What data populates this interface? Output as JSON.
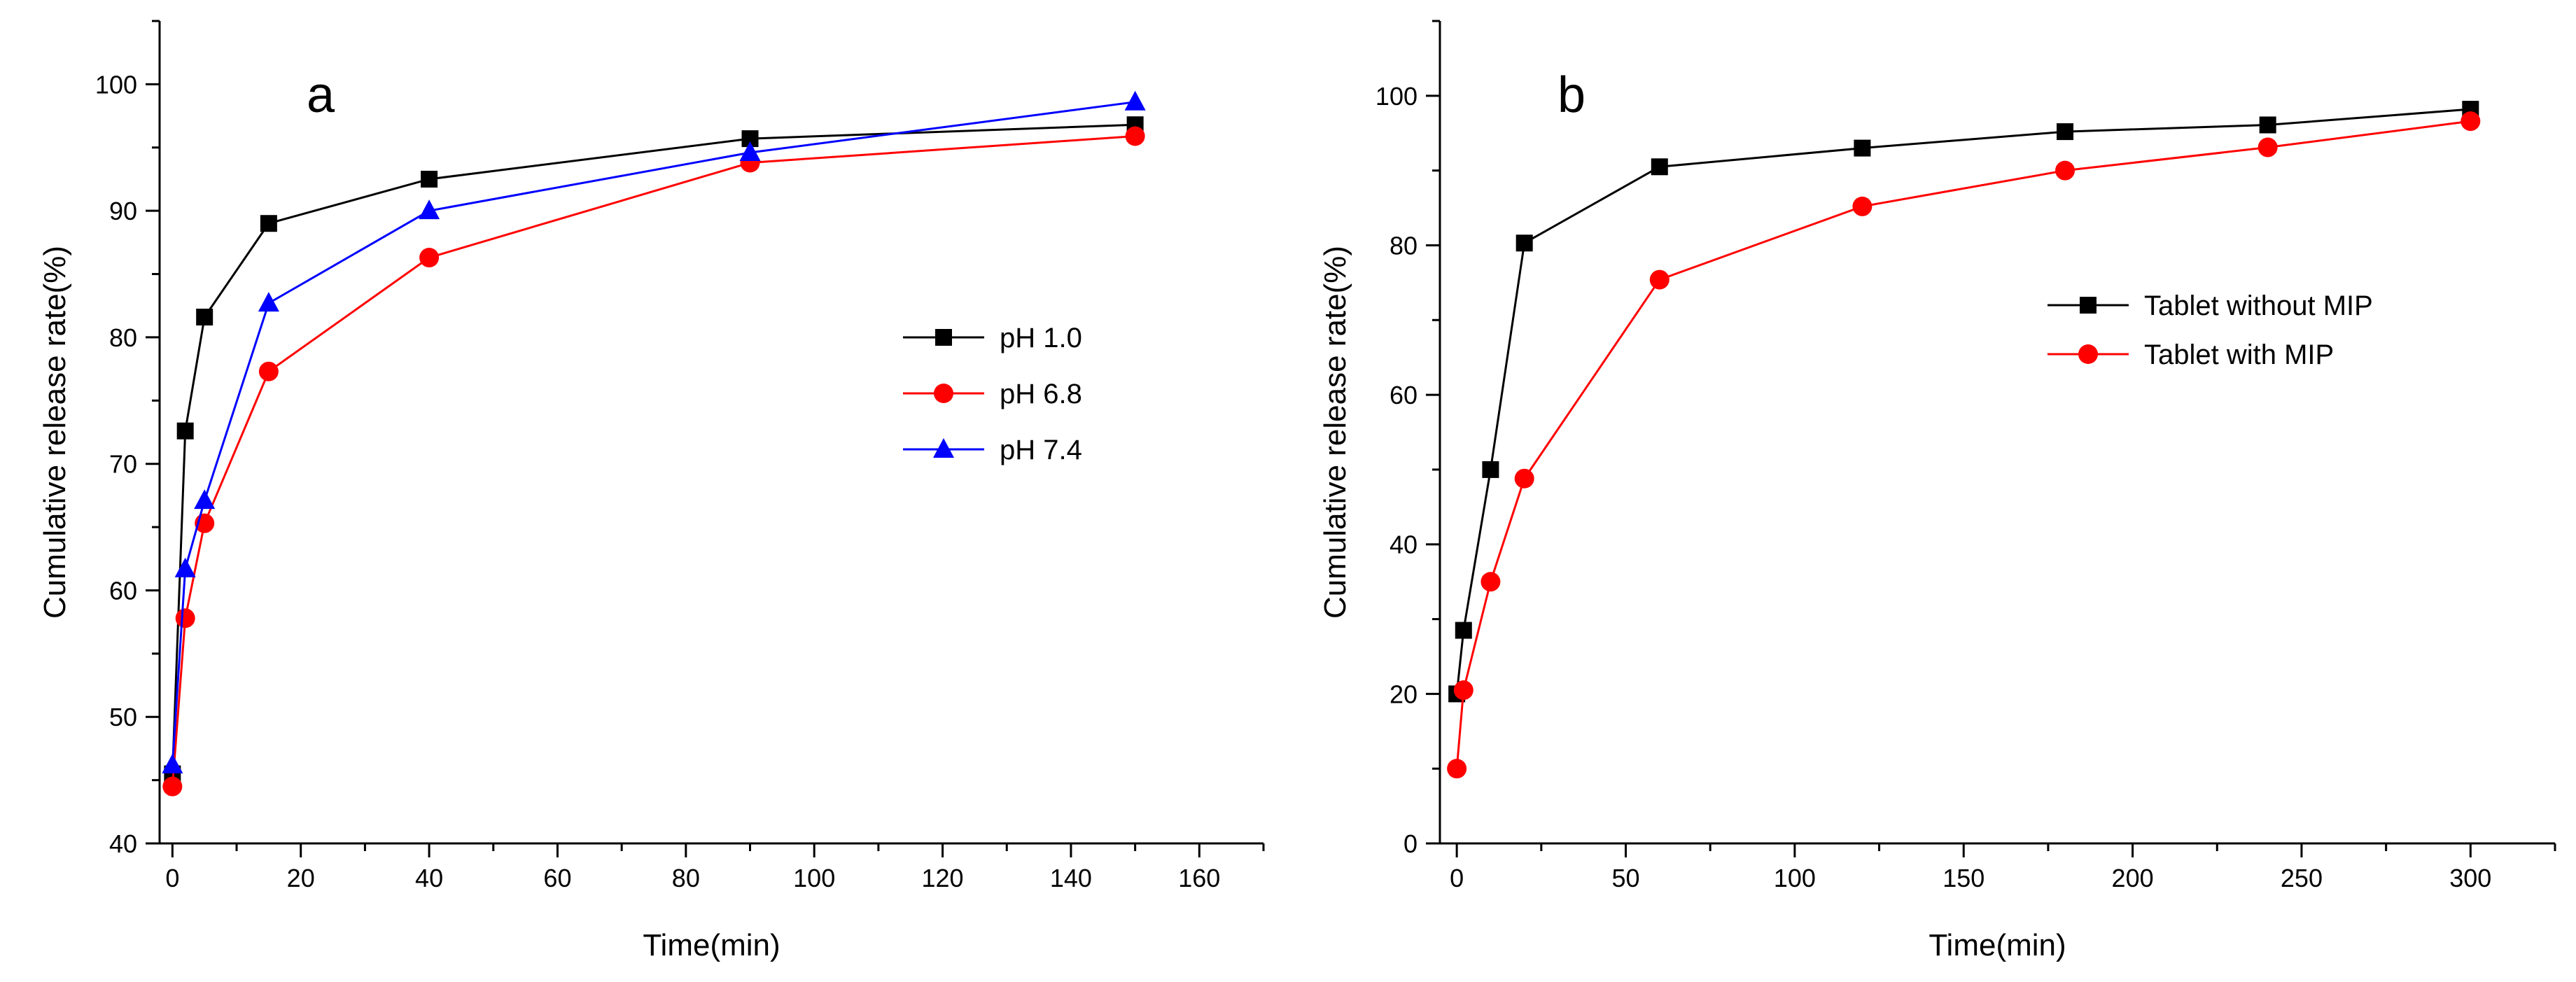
{
  "chart_data": [
    {
      "type": "line",
      "panel_label": "a",
      "xlabel": "Time(min)",
      "ylabel": "Cumulative release rate(%)",
      "xlim": [
        -2,
        170
      ],
      "ylim": [
        40,
        105
      ],
      "xticks": [
        0,
        20,
        40,
        60,
        80,
        100,
        120,
        140,
        160
      ],
      "yticks": [
        40,
        50,
        60,
        70,
        80,
        90,
        100
      ],
      "grid": false,
      "legend_position": "center-right",
      "series": [
        {
          "name": "pH 1.0",
          "color": "#000000",
          "marker": "square",
          "x": [
            0,
            2,
            5,
            15,
            40,
            90,
            150
          ],
          "y": [
            45.5,
            72.6,
            81.6,
            89.0,
            92.5,
            95.7,
            96.8
          ]
        },
        {
          "name": "pH 6.8",
          "color": "#ff0000",
          "marker": "circle",
          "x": [
            0,
            2,
            5,
            15,
            40,
            90,
            150
          ],
          "y": [
            44.5,
            57.8,
            65.3,
            77.3,
            86.3,
            93.8,
            95.9
          ]
        },
        {
          "name": "pH 7.4",
          "color": "#0000ff",
          "marker": "triangle",
          "x": [
            0,
            2,
            5,
            15,
            40,
            90,
            150
          ],
          "y": [
            46.2,
            61.7,
            67.1,
            82.7,
            90.0,
            94.6,
            98.6
          ]
        }
      ]
    },
    {
      "type": "line",
      "panel_label": "b",
      "xlabel": "Time(min)",
      "ylabel": "Cumulative release rate(%)",
      "xlim": [
        -5,
        325
      ],
      "ylim": [
        0,
        110
      ],
      "xticks": [
        0,
        50,
        100,
        150,
        200,
        250,
        300
      ],
      "yticks": [
        0,
        20,
        40,
        60,
        80,
        100
      ],
      "grid": false,
      "legend_position": "center-right",
      "series": [
        {
          "name": "Tablet without MIP",
          "color": "#000000",
          "marker": "square",
          "x": [
            0,
            2,
            10,
            20,
            60,
            120,
            180,
            240,
            300
          ],
          "y": [
            20,
            28.5,
            50,
            80.3,
            90.5,
            93,
            95.2,
            96.1,
            98.2
          ]
        },
        {
          "name": "Tablet with MIP",
          "color": "#ff0000",
          "marker": "circle",
          "x": [
            0,
            2,
            10,
            20,
            60,
            120,
            180,
            240,
            300
          ],
          "y": [
            10,
            20.5,
            35,
            48.8,
            75.4,
            85.2,
            90,
            93.1,
            96.6
          ]
        }
      ]
    }
  ]
}
